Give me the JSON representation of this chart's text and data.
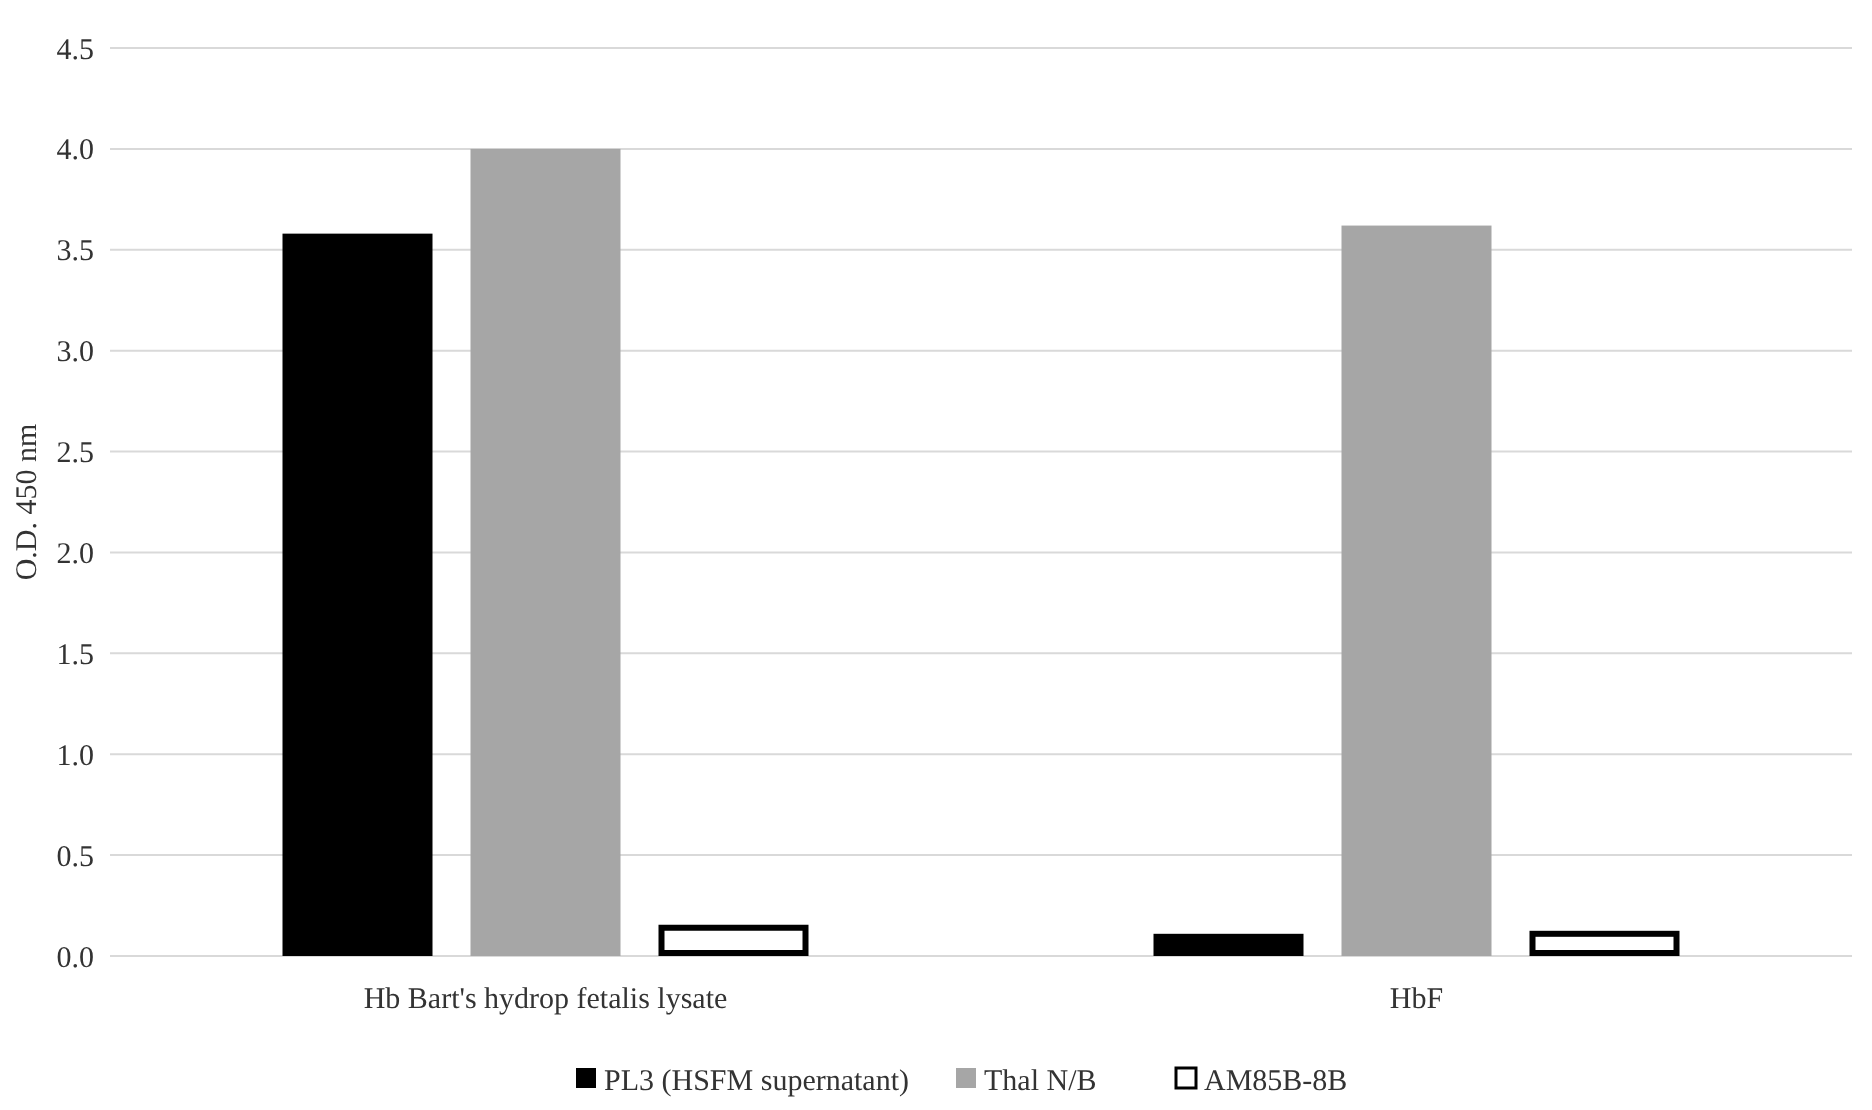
{
  "chart_data": {
    "type": "bar",
    "ylabel": "O.D. 450 nm",
    "categories": [
      "Hb Bart's hydrop fetalis lysate",
      "HbF"
    ],
    "series": [
      {
        "name": "PL3 (HSFM supernatant)",
        "color": "#000000",
        "values": [
          3.58,
          0.11
        ]
      },
      {
        "name": "Thal N/B",
        "color": "#a6a6a6",
        "values": [
          4.0,
          3.62
        ]
      },
      {
        "name": "AM85B-8B",
        "color": "#ffffff",
        "values": [
          0.14,
          0.11
        ]
      }
    ],
    "ylim": [
      0,
      4.5
    ],
    "yticks": [
      {
        "value": 0,
        "label": "0.0"
      },
      {
        "value": 0.5,
        "label": "0.5"
      },
      {
        "value": 1,
        "label": "1.0"
      },
      {
        "value": 1.5,
        "label": "1.5"
      },
      {
        "value": 2,
        "label": "2.0"
      },
      {
        "value": 2.5,
        "label": "2.5"
      },
      {
        "value": 3,
        "label": "3.0"
      },
      {
        "value": 3.5,
        "label": "3.5"
      },
      {
        "value": 4,
        "label": "4.0"
      },
      {
        "value": 4.5,
        "label": "4.5"
      }
    ],
    "grid": "y",
    "legend": "bottom"
  }
}
